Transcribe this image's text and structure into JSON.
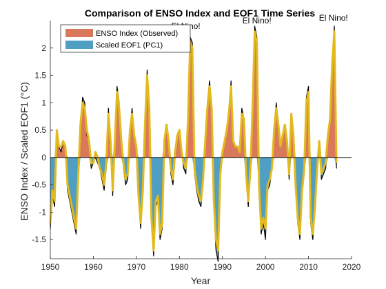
{
  "chart_data": {
    "type": "area",
    "title": "Comparison of ENSO Index and EOF1 Time Series",
    "xlabel": "Year",
    "ylabel": "ENSO Index / Scaled EOF1 (°C)",
    "xlim": [
      1950,
      2020
    ],
    "ylim": [
      -1.85,
      2.5
    ],
    "xticks": [
      1950,
      1960,
      1970,
      1980,
      1990,
      2000,
      2010,
      2020
    ],
    "yticks": [
      -1.5,
      -1,
      -0.5,
      0,
      0.5,
      1,
      1.5,
      2
    ],
    "grid": false,
    "legend_position": "top-left",
    "colors": {
      "positive_fill": "#D9785A",
      "negative_fill": "#4F9EC4",
      "index_line": "#000000",
      "eof_line": "#E2BA1E",
      "axis": "#262626"
    },
    "x": [
      1950.0,
      1950.5,
      1951.0,
      1951.5,
      1952.0,
      1952.5,
      1953.0,
      1953.5,
      1954.0,
      1954.5,
      1955.0,
      1955.5,
      1956.0,
      1956.5,
      1957.0,
      1957.5,
      1958.0,
      1958.5,
      1959.0,
      1959.5,
      1960.0,
      1960.5,
      1961.0,
      1961.5,
      1962.0,
      1962.5,
      1963.0,
      1963.5,
      1964.0,
      1964.5,
      1965.0,
      1965.5,
      1966.0,
      1966.5,
      1967.0,
      1967.5,
      1968.0,
      1968.5,
      1969.0,
      1969.5,
      1970.0,
      1970.5,
      1971.0,
      1971.5,
      1972.0,
      1972.5,
      1973.0,
      1973.5,
      1974.0,
      1974.5,
      1975.0,
      1975.5,
      1976.0,
      1976.5,
      1977.0,
      1977.5,
      1978.0,
      1978.5,
      1979.0,
      1979.5,
      1980.0,
      1980.5,
      1981.0,
      1981.5,
      1982.0,
      1982.5,
      1983.0,
      1983.5,
      1984.0,
      1984.5,
      1985.0,
      1985.5,
      1986.0,
      1986.5,
      1987.0,
      1987.5,
      1988.0,
      1988.5,
      1989.0,
      1989.5,
      1990.0,
      1990.5,
      1991.0,
      1991.5,
      1992.0,
      1992.5,
      1993.0,
      1993.5,
      1994.0,
      1994.5,
      1995.0,
      1995.5,
      1996.0,
      1996.5,
      1997.0,
      1997.5,
      1998.0,
      1998.5,
      1999.0,
      1999.5,
      2000.0,
      2000.5,
      2001.0,
      2001.5,
      2002.0,
      2002.5,
      2003.0,
      2003.5,
      2004.0,
      2004.5,
      2005.0,
      2005.5,
      2006.0,
      2006.5,
      2007.0,
      2007.5,
      2008.0,
      2008.5,
      2009.0,
      2009.5,
      2010.0,
      2010.5,
      2011.0,
      2011.5,
      2012.0,
      2012.5,
      2013.0,
      2013.5,
      2014.0,
      2014.5,
      2015.0,
      2015.5,
      2016.0,
      2016.5
    ],
    "series": [
      {
        "name": "ENSO Index (Observed)",
        "values": [
          -1.3,
          -0.7,
          -0.9,
          0.4,
          0.2,
          0.1,
          0.3,
          0.2,
          -0.6,
          -0.8,
          -1.0,
          -1.2,
          -1.4,
          -0.4,
          0.5,
          1.1,
          1.0,
          0.4,
          0.3,
          -0.2,
          -0.1,
          0.0,
          -0.1,
          -0.2,
          -0.4,
          -0.6,
          -0.2,
          0.9,
          0.3,
          -0.7,
          0.3,
          1.3,
          1.0,
          0.3,
          -0.2,
          -0.5,
          -0.4,
          0.5,
          0.9,
          0.4,
          0.2,
          -0.8,
          -1.3,
          -0.7,
          0.6,
          1.6,
          1.0,
          -1.2,
          -1.8,
          -0.9,
          -0.8,
          -1.5,
          -1.3,
          0.3,
          0.6,
          0.3,
          -0.3,
          -0.5,
          0.0,
          0.4,
          0.5,
          0.1,
          -0.2,
          -0.3,
          0.7,
          2.2,
          2.1,
          -0.3,
          -0.6,
          -0.8,
          -0.9,
          -0.5,
          0.3,
          1.0,
          1.4,
          1.0,
          -0.9,
          -1.7,
          -1.9,
          -0.4,
          0.1,
          0.3,
          0.5,
          0.9,
          1.4,
          0.3,
          0.2,
          0.2,
          0.1,
          0.9,
          0.7,
          -0.4,
          -0.9,
          -0.3,
          0.9,
          2.4,
          2.2,
          -0.6,
          -1.4,
          -1.2,
          -1.5,
          -0.6,
          -0.5,
          -0.2,
          0.5,
          1.0,
          0.6,
          0.2,
          0.4,
          0.6,
          0.3,
          -0.4,
          0.8,
          0.4,
          -0.6,
          -1.2,
          -1.5,
          -0.7,
          -0.3,
          1.1,
          1.3,
          -1.2,
          -1.5,
          -1.0,
          -0.3,
          0.3,
          -0.4,
          -0.3,
          -0.2,
          0.4,
          0.7,
          1.8,
          2.4,
          -0.2
        ]
      },
      {
        "name": "Scaled EOF1 (PC1)",
        "values": [
          -1.2,
          -0.6,
          -0.8,
          0.5,
          0.2,
          0.2,
          0.3,
          0.2,
          -0.5,
          -0.7,
          -0.9,
          -1.1,
          -1.3,
          -0.3,
          0.6,
          1.0,
          0.9,
          0.5,
          0.3,
          -0.1,
          -0.1,
          0.1,
          0.0,
          -0.2,
          -0.3,
          -0.5,
          -0.1,
          0.8,
          0.3,
          -0.6,
          0.3,
          1.2,
          0.9,
          0.3,
          -0.1,
          -0.4,
          -0.3,
          0.5,
          0.8,
          0.4,
          0.2,
          -0.7,
          -1.2,
          -0.6,
          0.6,
          1.5,
          0.9,
          -1.1,
          -1.7,
          -0.8,
          -0.7,
          -1.4,
          -1.2,
          0.3,
          0.6,
          0.3,
          -0.2,
          -0.4,
          0.1,
          0.4,
          0.5,
          0.1,
          -0.1,
          -0.2,
          0.7,
          2.1,
          2.0,
          -0.2,
          -0.5,
          -0.7,
          -0.8,
          -0.4,
          0.3,
          0.9,
          1.3,
          0.9,
          -0.8,
          -1.5,
          -1.7,
          -0.3,
          0.1,
          0.3,
          0.5,
          0.8,
          1.3,
          0.3,
          0.2,
          0.2,
          0.1,
          0.8,
          0.7,
          -0.3,
          -0.8,
          -0.2,
          0.9,
          2.3,
          2.1,
          -0.5,
          -1.3,
          -1.1,
          -1.3,
          -0.5,
          -0.4,
          -0.2,
          0.5,
          0.9,
          0.6,
          0.2,
          0.4,
          0.6,
          0.3,
          -0.3,
          0.8,
          0.4,
          -0.5,
          -1.1,
          -1.4,
          -0.6,
          -0.2,
          1.0,
          1.2,
          -1.1,
          -1.4,
          -0.9,
          -0.2,
          0.3,
          -0.3,
          -0.2,
          -0.1,
          0.4,
          0.7,
          1.7,
          2.3,
          -0.1
        ]
      }
    ],
    "annotations": [
      {
        "text": "El Nino!",
        "x": 1981.5,
        "y": 2.35
      },
      {
        "text": "El Nino!",
        "x": 1998.0,
        "y": 2.45
      },
      {
        "text": "El Nino!",
        "x": 2015.8,
        "y": 2.5
      }
    ]
  }
}
